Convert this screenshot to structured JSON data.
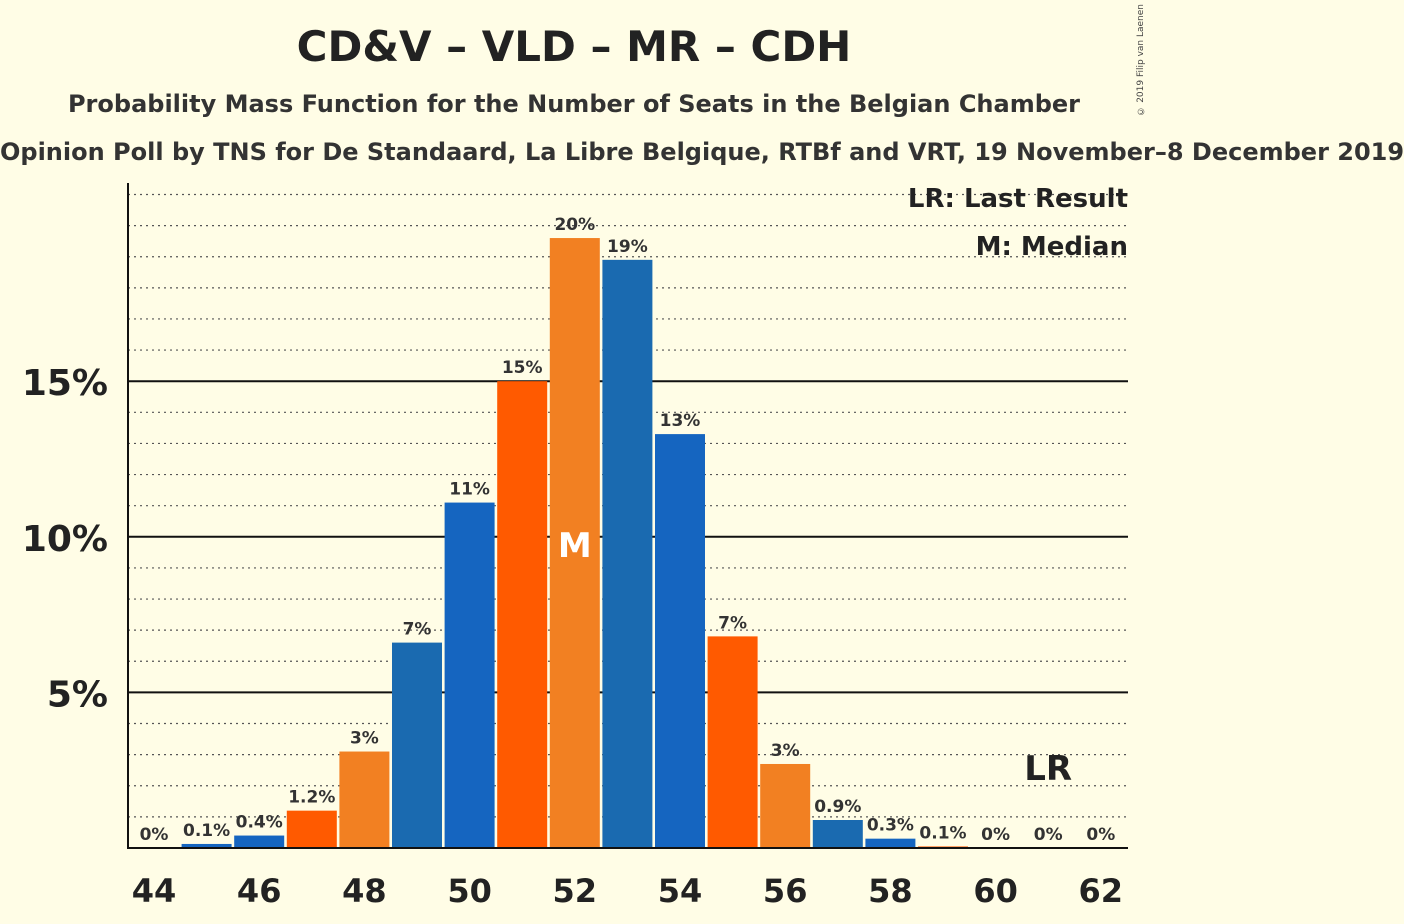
{
  "chart_data": {
    "type": "bar",
    "title": "CD&V – VLD – MR – CDH",
    "subtitle": "Probability Mass Function for the Number of Seats in the Belgian Chamber",
    "subsubtitle": "Opinion Poll by TNS for De Standaard, La Libre Belgique, RTBf and VRT, 19 November–8 December 2019",
    "copyright": "© 2019 Filip van Laenen",
    "x": [
      44,
      45,
      46,
      47,
      48,
      49,
      50,
      51,
      52,
      53,
      54,
      55,
      56,
      57,
      58,
      59,
      60,
      61,
      62
    ],
    "values": [
      0,
      0.13,
      0.4,
      1.2,
      3.1,
      6.6,
      11.1,
      15.0,
      19.6,
      18.9,
      13.3,
      6.8,
      2.7,
      0.9,
      0.3,
      0.05,
      0,
      0,
      0
    ],
    "labels": [
      "0%",
      "0.1%",
      "0.4%",
      "1.2%",
      "3%",
      "7%",
      "11%",
      "15%",
      "20%",
      "19%",
      "13%",
      "7%",
      "3%",
      "0.9%",
      "0.3%",
      "0.1%",
      "0%",
      "0%",
      "0%"
    ],
    "colors": [
      "#1565c0",
      "#1565c0",
      "#1565c0",
      "#ff5a00",
      "#f28022",
      "#1a6ab0",
      "#1565c0",
      "#ff5a00",
      "#f28022",
      "#1a6ab0",
      "#1565c0",
      "#ff5a00",
      "#f28022",
      "#1a6ab0",
      "#1565c0",
      "#ff5a00",
      "#f28022",
      "#1a6ab0",
      "#1565c0"
    ],
    "x_tick_labels": [
      "44",
      "46",
      "48",
      "50",
      "52",
      "54",
      "56",
      "58",
      "60",
      "62"
    ],
    "x_tick_values": [
      44,
      46,
      48,
      50,
      52,
      54,
      56,
      58,
      60,
      62
    ],
    "y_tick_labels": [
      "5%",
      "10%",
      "15%"
    ],
    "y_tick_values": [
      5,
      10,
      15
    ],
    "ylim": [
      0,
      21.5
    ],
    "median_x": 52,
    "median_label": "M",
    "last_result_x": 61,
    "last_result_label": "LR",
    "legend": {
      "last_result": "LR: Last Result",
      "median": "M: Median",
      "placement": "top-right"
    }
  }
}
